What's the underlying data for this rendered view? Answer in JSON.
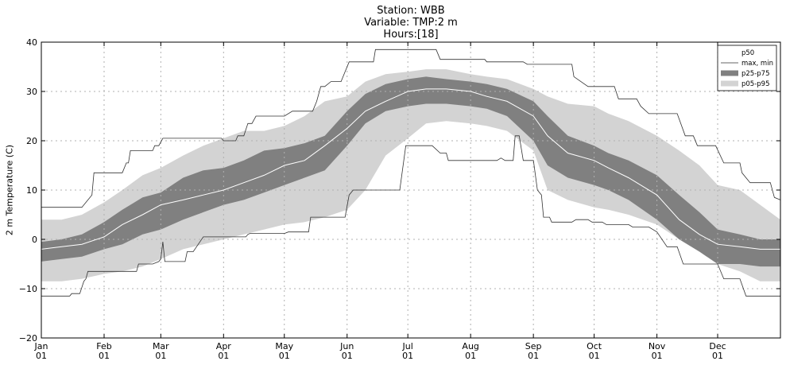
{
  "chart_data": {
    "type": "area",
    "title_lines": [
      "Station: WBB",
      "Variable: TMP:2 m",
      "Hours:[18]"
    ],
    "xlabel": "",
    "ylabel": "2 m Temperature (C)",
    "ylim": [
      -20,
      40
    ],
    "yticks": [
      -20,
      -10,
      0,
      10,
      20,
      30,
      40
    ],
    "xlim": [
      0,
      365
    ],
    "grid": true,
    "legend_position": "top-right",
    "month_ticks": [
      {
        "day": 0,
        "label1": "Jan",
        "label2": "01"
      },
      {
        "day": 31,
        "label1": "Feb",
        "label2": "01"
      },
      {
        "day": 59,
        "label1": "Mar",
        "label2": "01"
      },
      {
        "day": 90,
        "label1": "Apr",
        "label2": "01"
      },
      {
        "day": 120,
        "label1": "May",
        "label2": "01"
      },
      {
        "day": 151,
        "label1": "Jun",
        "label2": "01"
      },
      {
        "day": 181,
        "label1": "Jul",
        "label2": "01"
      },
      {
        "day": 212,
        "label1": "Aug",
        "label2": "01"
      },
      {
        "day": 243,
        "label1": "Sep",
        "label2": "01"
      },
      {
        "day": 273,
        "label1": "Oct",
        "label2": "01"
      },
      {
        "day": 304,
        "label1": "Nov",
        "label2": "01"
      },
      {
        "day": 334,
        "label1": "Dec",
        "label2": "01"
      }
    ],
    "legend": [
      {
        "label": "p50",
        "style": "white-line"
      },
      {
        "label": "max, min",
        "style": "dark-line"
      },
      {
        "label": "p25-p75",
        "style": "dark-band"
      },
      {
        "label": "p05-p95",
        "style": "light-band"
      }
    ],
    "colors": {
      "p05_p95": "#d3d3d3",
      "p25_p75": "#808080",
      "p50": "#ffffff",
      "maxmin": "#333333",
      "grid": "#b0b0b0"
    },
    "series": {
      "max": [
        [
          0,
          6.5
        ],
        [
          20,
          6.5
        ],
        [
          25,
          9
        ],
        [
          26,
          13.5
        ],
        [
          40,
          13.5
        ],
        [
          42,
          15.5
        ],
        [
          43,
          15.5
        ],
        [
          44,
          18
        ],
        [
          55,
          18
        ],
        [
          56,
          19
        ],
        [
          58,
          19
        ],
        [
          60,
          20.5
        ],
        [
          89,
          20.5
        ],
        [
          90,
          20
        ],
        [
          96,
          20
        ],
        [
          97,
          21
        ],
        [
          100,
          21
        ],
        [
          102,
          23.5
        ],
        [
          104,
          23.5
        ],
        [
          106,
          25
        ],
        [
          120,
          25
        ],
        [
          124,
          26
        ],
        [
          134,
          26
        ],
        [
          136,
          28
        ],
        [
          138,
          31
        ],
        [
          140,
          31
        ],
        [
          143,
          32
        ],
        [
          148,
          32
        ],
        [
          152,
          36
        ],
        [
          164,
          36
        ],
        [
          165,
          38.5
        ],
        [
          195,
          38.5
        ],
        [
          197,
          36.5
        ],
        [
          219,
          36.5
        ],
        [
          220,
          36
        ],
        [
          238,
          36
        ],
        [
          240,
          35.5
        ],
        [
          262,
          35.5
        ],
        [
          263,
          33
        ],
        [
          270,
          31
        ],
        [
          283,
          31
        ],
        [
          285,
          28.5
        ],
        [
          294,
          28.5
        ],
        [
          296,
          27
        ],
        [
          300,
          25.5
        ],
        [
          314,
          25.5
        ],
        [
          318,
          21
        ],
        [
          322,
          21
        ],
        [
          324,
          19
        ],
        [
          333,
          19
        ],
        [
          337,
          15.5
        ],
        [
          345,
          15.5
        ],
        [
          346,
          13.5
        ],
        [
          350,
          11.5
        ],
        [
          360,
          11.5
        ],
        [
          362,
          8.5
        ],
        [
          365,
          8
        ]
      ],
      "min": [
        [
          0,
          -11.5
        ],
        [
          14,
          -11.5
        ],
        [
          15,
          -11
        ],
        [
          19,
          -11
        ],
        [
          21,
          -8.5
        ],
        [
          22,
          -8
        ],
        [
          23,
          -6.5
        ],
        [
          47,
          -6.5
        ],
        [
          48,
          -5
        ],
        [
          55,
          -5
        ],
        [
          58,
          -4.5
        ],
        [
          59,
          -4
        ],
        [
          60,
          -0.5
        ],
        [
          61,
          -4.5
        ],
        [
          71,
          -4.5
        ],
        [
          72,
          -2.5
        ],
        [
          75,
          -2.5
        ],
        [
          80,
          0.5
        ],
        [
          101,
          0.5
        ],
        [
          102,
          1
        ],
        [
          103,
          1.2
        ],
        [
          120,
          1.2
        ],
        [
          122,
          1.5
        ],
        [
          132,
          1.5
        ],
        [
          133,
          4.5
        ],
        [
          150,
          4.5
        ],
        [
          152,
          9
        ],
        [
          154,
          10
        ],
        [
          177,
          10
        ],
        [
          180,
          19
        ],
        [
          193,
          19
        ],
        [
          197,
          17.5
        ],
        [
          200,
          17.5
        ],
        [
          201,
          16
        ],
        [
          225,
          16
        ],
        [
          227,
          16.5
        ],
        [
          229,
          16
        ],
        [
          233,
          16
        ],
        [
          234,
          21
        ],
        [
          236,
          21
        ],
        [
          238,
          16
        ],
        [
          243,
          16
        ],
        [
          245,
          10
        ],
        [
          247,
          9
        ],
        [
          248,
          4.5
        ],
        [
          251,
          4.5
        ],
        [
          252,
          3.5
        ],
        [
          262,
          3.5
        ],
        [
          264,
          4
        ],
        [
          270,
          4
        ],
        [
          272,
          3.5
        ],
        [
          277,
          3.5
        ],
        [
          279,
          3
        ],
        [
          290,
          3
        ],
        [
          292,
          2.5
        ],
        [
          300,
          2.5
        ],
        [
          304,
          1.5
        ],
        [
          309,
          -1.5
        ],
        [
          314,
          -1.5
        ],
        [
          317,
          -5
        ],
        [
          334,
          -5
        ],
        [
          337,
          -8
        ],
        [
          345,
          -8
        ],
        [
          348,
          -11.5
        ],
        [
          358,
          -11.5
        ],
        [
          365,
          -11.5
        ]
      ],
      "days": [
        0,
        10,
        20,
        31,
        40,
        50,
        59,
        70,
        80,
        90,
        100,
        110,
        120,
        130,
        140,
        151,
        160,
        170,
        181,
        190,
        200,
        212,
        220,
        230,
        243,
        250,
        260,
        273,
        280,
        290,
        304,
        315,
        325,
        334,
        345,
        355,
        365
      ],
      "p05": [
        -8.5,
        -8.5,
        -8,
        -7,
        -6.5,
        -5.5,
        -4,
        -2,
        -1,
        0,
        1,
        2,
        3,
        3.5,
        4.5,
        6,
        10,
        17,
        20.5,
        23.5,
        24,
        23.5,
        23,
        22,
        18,
        10,
        8,
        6.5,
        6,
        5,
        3,
        0,
        -2,
        -5,
        -6.5,
        -8.5,
        -8.5
      ],
      "p25": [
        -4.5,
        -4,
        -3.5,
        -2,
        -1,
        1,
        2,
        4,
        5.5,
        7,
        8,
        9.5,
        11,
        12.5,
        14,
        19,
        23.5,
        26,
        27,
        27.5,
        27.5,
        27,
        26.5,
        25,
        20,
        15,
        12.5,
        11,
        10,
        8,
        4,
        0,
        -2.5,
        -5,
        -5,
        -5.5,
        -5.5
      ],
      "p50": [
        -2,
        -1.5,
        -1,
        0.5,
        3,
        5,
        7,
        8,
        9,
        10,
        11.5,
        13,
        15,
        16,
        19,
        22.5,
        26,
        28,
        30,
        30.5,
        30.5,
        30,
        29,
        28,
        25,
        21,
        17.5,
        16,
        14.5,
        12.5,
        9,
        4,
        1,
        -1,
        -1.5,
        -2,
        -2
      ],
      "p75": [
        -0.5,
        0,
        1,
        3.5,
        6,
        8.5,
        9.5,
        12.5,
        14,
        14.5,
        16,
        18,
        18.5,
        19.5,
        21,
        26,
        29.5,
        31.5,
        32.5,
        33,
        32.5,
        32,
        31.5,
        30.5,
        28,
        25,
        21,
        19,
        17.5,
        16,
        13,
        9,
        5.5,
        2,
        1,
        0,
        0
      ],
      "p95": [
        4,
        4,
        5,
        7.5,
        10,
        13,
        14.5,
        17,
        19,
        20.5,
        22,
        22,
        23,
        25,
        28,
        29,
        32,
        33.5,
        34,
        34.5,
        34.5,
        33.5,
        33,
        32.5,
        30.5,
        29,
        27.5,
        27,
        25.5,
        24,
        21,
        18,
        15,
        11,
        10,
        7,
        4
      ]
    }
  }
}
